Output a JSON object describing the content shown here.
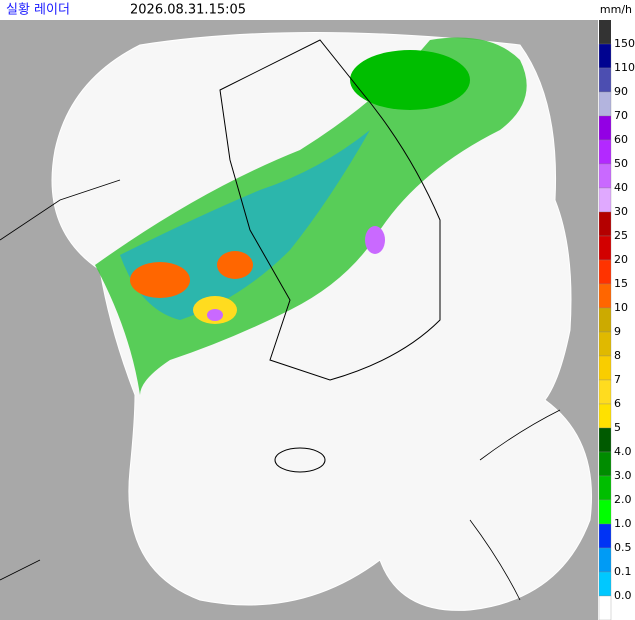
{
  "header": {
    "title": "실황 레이더",
    "timestamp": "2026.08.31.15:05",
    "unit": "mm/h"
  },
  "legend": {
    "levels": [
      {
        "label": "150",
        "color": "#000390"
      },
      {
        "label": "110",
        "color": "#4c4eb1"
      },
      {
        "label": "90",
        "color": "#b3b4de"
      },
      {
        "label": "70",
        "color": "#9300e4"
      },
      {
        "label": "60",
        "color": "#b329ff"
      },
      {
        "label": "50",
        "color": "#c969ff"
      },
      {
        "label": "40",
        "color": "#e0a9ff"
      },
      {
        "label": "30",
        "color": "#b40000"
      },
      {
        "label": "25",
        "color": "#d20000"
      },
      {
        "label": "20",
        "color": "#ff3300"
      },
      {
        "label": "15",
        "color": "#ff6600"
      },
      {
        "label": "10",
        "color": "#ccaa00"
      },
      {
        "label": "9",
        "color": "#e0b900"
      },
      {
        "label": "8",
        "color": "#f9cd00"
      },
      {
        "label": "7",
        "color": "#ffdc1f"
      },
      {
        "label": "6",
        "color": "#ffe100"
      },
      {
        "label": "5",
        "color": "#005a00"
      },
      {
        "label": "4.0",
        "color": "#008c00"
      },
      {
        "label": "3.0",
        "color": "#00be00"
      },
      {
        "label": "2.0",
        "color": "#00ff00"
      },
      {
        "label": "1.0",
        "color": "#0033f5"
      },
      {
        "label": "0.5",
        "color": "#009bf5"
      },
      {
        "label": "0.1",
        "color": "#00c8ff"
      },
      {
        "label": "0.0",
        "color": "#ffffff"
      }
    ]
  }
}
